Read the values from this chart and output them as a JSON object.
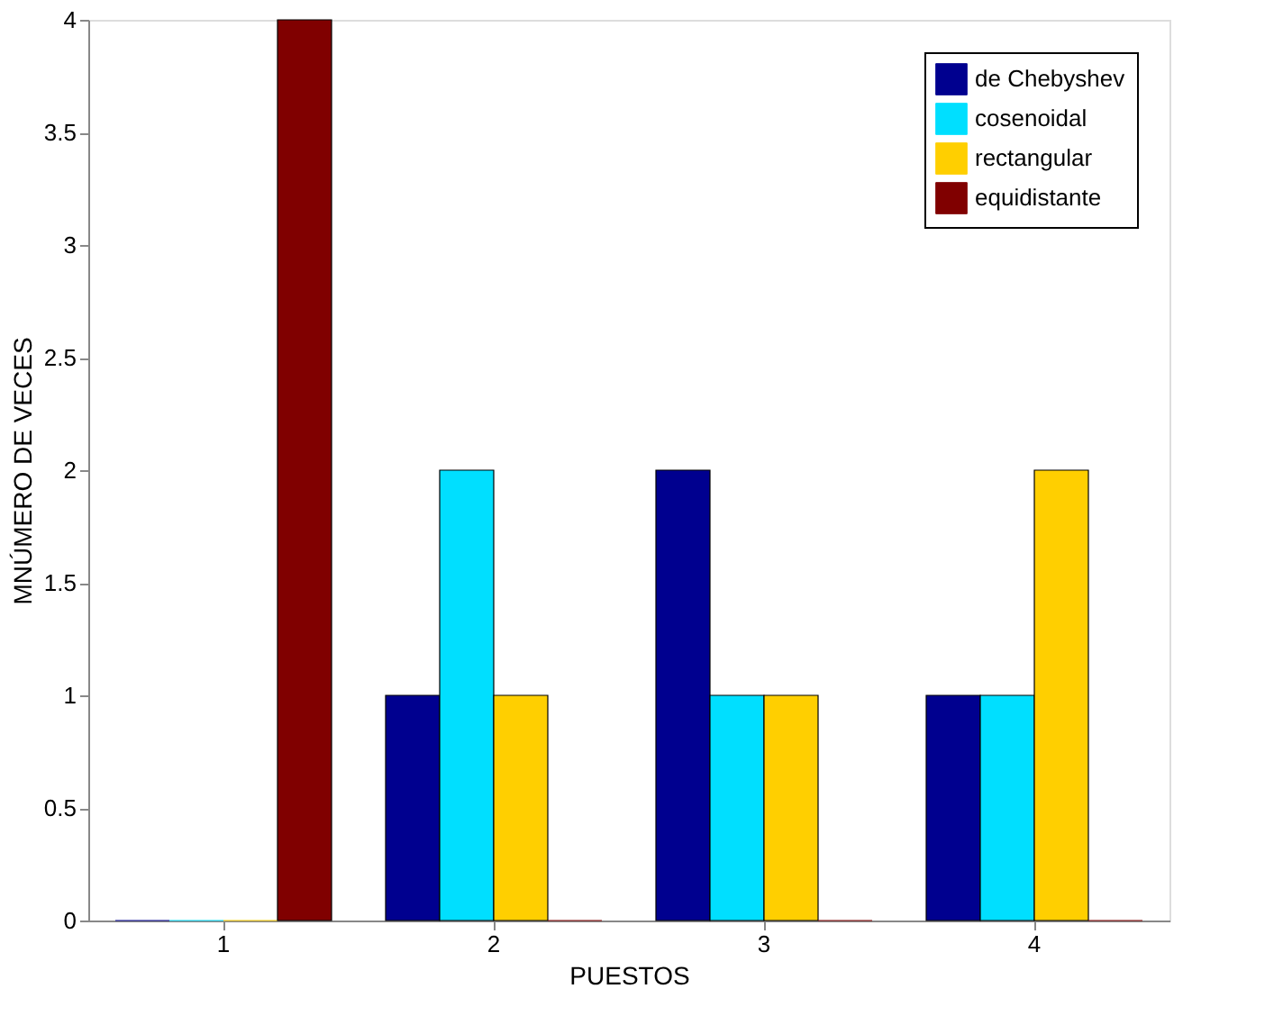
{
  "chart_data": {
    "type": "bar",
    "xlabel": "PUESTOS",
    "ylabel": "MNÚMERO DE VECES",
    "categories": [
      "1",
      "2",
      "3",
      "4"
    ],
    "series": [
      {
        "name": "de Chebyshev",
        "color": "#00008f",
        "values": [
          0,
          1,
          2,
          1
        ]
      },
      {
        "name": "cosenoidal",
        "color": "#00dfff",
        "values": [
          0,
          2,
          1,
          1
        ]
      },
      {
        "name": "rectangular",
        "color": "#ffcf00",
        "values": [
          0,
          1,
          1,
          2
        ]
      },
      {
        "name": "equidistante",
        "color": "#800000",
        "values": [
          4,
          0,
          0,
          0
        ]
      }
    ],
    "ylim": [
      0,
      4
    ],
    "yticks": [
      0,
      0.5,
      1,
      1.5,
      2,
      2.5,
      3,
      3.5,
      4
    ],
    "grid": false,
    "legend": "top right"
  }
}
